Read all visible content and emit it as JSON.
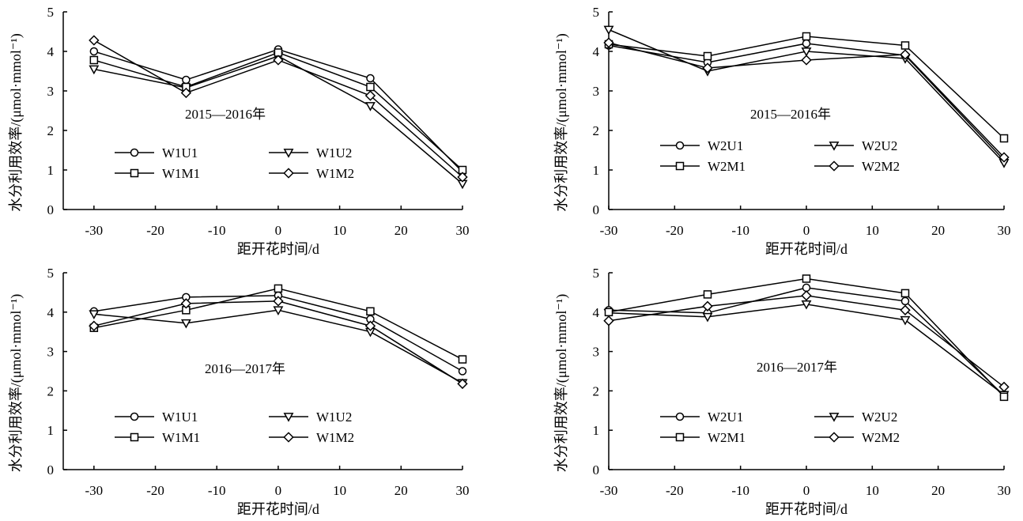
{
  "figure": {
    "ylabel": "水分利用效率/(μmol·mmol⁻¹)",
    "xlabel": "距开花时间/d"
  },
  "chart_data": [
    {
      "type": "line",
      "title": "2015—2016年",
      "xlabel": "距开花时间/d",
      "ylabel": "水分利用效率/(μmol·mmol⁻¹)",
      "xlim": [
        -35,
        30
      ],
      "ylim": [
        0,
        5
      ],
      "xticks": [
        -30,
        -20,
        -10,
        0,
        10,
        20,
        30
      ],
      "yticks": [
        0,
        1,
        2,
        3,
        4,
        5
      ],
      "x": [
        -30,
        -15,
        0,
        15,
        30
      ],
      "legend_position": "bottom-center",
      "grid": false,
      "series": [
        {
          "name": "W1U1",
          "marker": "circle",
          "values": [
            4.0,
            3.28,
            4.05,
            3.32,
            0.95
          ]
        },
        {
          "name": "W1U2",
          "marker": "triangle-down",
          "values": [
            3.55,
            3.08,
            3.88,
            2.62,
            0.65
          ]
        },
        {
          "name": "W1M1",
          "marker": "square",
          "values": [
            3.78,
            3.1,
            3.97,
            3.1,
            1.0
          ]
        },
        {
          "name": "W1M2",
          "marker": "diamond",
          "values": [
            4.28,
            2.95,
            3.78,
            2.88,
            0.82
          ]
        }
      ]
    },
    {
      "type": "line",
      "title": "2015—2016年",
      "xlabel": "距开花时间/d",
      "ylabel": "水分利用效率/(μmol·mmol⁻¹)",
      "xlim": [
        -30,
        30
      ],
      "ylim": [
        0,
        5
      ],
      "xticks": [
        -30,
        -20,
        -10,
        0,
        10,
        20,
        30
      ],
      "yticks": [
        0,
        1,
        2,
        3,
        4,
        5
      ],
      "x": [
        -30,
        -15,
        0,
        15,
        30
      ],
      "legend_position": "bottom-center",
      "grid": false,
      "series": [
        {
          "name": "W2U1",
          "marker": "circle",
          "values": [
            4.15,
            3.72,
            4.2,
            3.9,
            1.25
          ]
        },
        {
          "name": "W2U2",
          "marker": "triangle-down",
          "values": [
            4.55,
            3.5,
            4.0,
            3.82,
            1.18
          ]
        },
        {
          "name": "W2M1",
          "marker": "square",
          "values": [
            4.18,
            3.88,
            4.38,
            4.15,
            1.8
          ]
        },
        {
          "name": "W2M2",
          "marker": "diamond",
          "values": [
            4.22,
            3.58,
            3.78,
            3.92,
            1.32
          ]
        }
      ]
    },
    {
      "type": "line",
      "title": "2016—2017年",
      "xlabel": "距开花时间/d",
      "ylabel": "水分利用效率/(μmol·mmol⁻¹)",
      "xlim": [
        -35,
        30
      ],
      "ylim": [
        0,
        5
      ],
      "xticks": [
        -30,
        -20,
        -10,
        0,
        10,
        20,
        30
      ],
      "yticks": [
        0,
        1,
        2,
        3,
        4,
        5
      ],
      "x": [
        -30,
        -15,
        0,
        15,
        30
      ],
      "legend_position": "bottom-center",
      "grid": false,
      "series": [
        {
          "name": "W1U1",
          "marker": "circle",
          "values": [
            4.02,
            4.38,
            4.42,
            3.82,
            2.5
          ]
        },
        {
          "name": "W1U2",
          "marker": "triangle-down",
          "values": [
            3.95,
            3.72,
            4.05,
            3.5,
            2.2
          ]
        },
        {
          "name": "W1M1",
          "marker": "square",
          "values": [
            3.6,
            4.05,
            4.6,
            4.02,
            2.8
          ]
        },
        {
          "name": "W1M2",
          "marker": "diamond",
          "values": [
            3.65,
            4.22,
            4.28,
            3.65,
            2.18
          ]
        }
      ]
    },
    {
      "type": "line",
      "title": "2016—2017年",
      "xlabel": "距开花时间/d",
      "ylabel": "水分利用效率/(μmol·mmol⁻¹)",
      "xlim": [
        -30,
        30
      ],
      "ylim": [
        0,
        5
      ],
      "xticks": [
        -30,
        -20,
        -10,
        0,
        10,
        20,
        30
      ],
      "yticks": [
        0,
        1,
        2,
        3,
        4,
        5
      ],
      "x": [
        -30,
        -15,
        0,
        15,
        30
      ],
      "legend_position": "bottom-center",
      "grid": false,
      "series": [
        {
          "name": "W2U1",
          "marker": "circle",
          "values": [
            4.05,
            3.98,
            4.62,
            4.28,
            1.88
          ]
        },
        {
          "name": "W2U2",
          "marker": "triangle-down",
          "values": [
            3.98,
            3.88,
            4.2,
            3.8,
            1.9
          ]
        },
        {
          "name": "W2M1",
          "marker": "square",
          "values": [
            4.0,
            4.45,
            4.85,
            4.48,
            1.85
          ]
        },
        {
          "name": "W2M2",
          "marker": "diamond",
          "values": [
            3.78,
            4.15,
            4.42,
            4.05,
            2.1
          ]
        }
      ]
    }
  ]
}
